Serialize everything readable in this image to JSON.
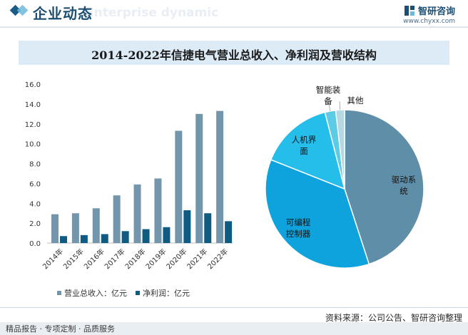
{
  "header": {
    "title": "企业动态",
    "subtitle": "Enterprise dynamic",
    "brand_name": "智研咨询",
    "brand_url": "www.chyxx.com"
  },
  "chart_title": "2014-2022年信捷电气营业总收入、净利润及营收结构",
  "colors": {
    "revenue": "#7396ac",
    "profit": "#0f5b82",
    "slice_drive": "#5f8fa8",
    "slice_plc": "#0ea3dc",
    "slice_hmi": "#25bdea",
    "slice_smart": "#5ccbe6",
    "slice_other": "#b4d8e4"
  },
  "chart_data": [
    {
      "type": "bar",
      "categories": [
        "2014年",
        "2015年",
        "2016年",
        "2017年",
        "2018年",
        "2019年",
        "2020年",
        "2021年",
        "2022年"
      ],
      "series": [
        {
          "name": "营业总收入：亿元",
          "values": [
            2.9,
            3.0,
            3.5,
            4.8,
            5.9,
            6.5,
            11.3,
            13.0,
            13.3
          ]
        },
        {
          "name": "净利润：亿元",
          "values": [
            0.7,
            0.8,
            0.9,
            1.2,
            1.4,
            1.6,
            3.3,
            3.0,
            2.2
          ]
        }
      ],
      "yticks": [
        "0.0",
        "2.0",
        "4.0",
        "6.0",
        "8.0",
        "10.0",
        "12.0",
        "14.0",
        "16.0"
      ],
      "ylim": [
        0,
        16
      ],
      "legend": "bottom"
    },
    {
      "type": "pie",
      "labels": [
        "驱动系统",
        "可编程控制器",
        "人机界面",
        "智能装备",
        "其他"
      ],
      "values": [
        45,
        36,
        15,
        2.2,
        1.8
      ]
    }
  ],
  "footer": {
    "source": "资料来源：公司公告、智研咨询整理",
    "tagline": "精品报告 · 专项定制 · 品质服务"
  }
}
